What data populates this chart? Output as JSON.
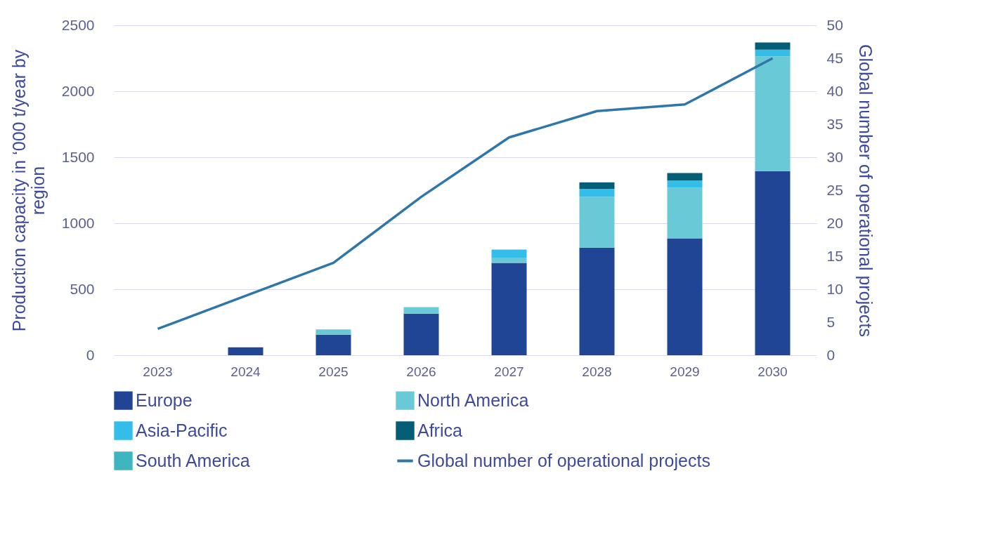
{
  "chart_data": {
    "type": "bar",
    "stacked": true,
    "categories": [
      "2023",
      "2024",
      "2025",
      "2026",
      "2027",
      "2028",
      "2029",
      "2030"
    ],
    "series": [
      {
        "name": "Europe",
        "color": "#1f4594",
        "values": [
          0,
          60,
          155,
          315,
          700,
          815,
          885,
          1395
        ]
      },
      {
        "name": "North America",
        "color": "#6ac9d6",
        "values": [
          0,
          0,
          40,
          50,
          40,
          385,
          385,
          870
        ]
      },
      {
        "name": "Asia-Pacific",
        "color": "#35bde9",
        "values": [
          0,
          0,
          0,
          0,
          60,
          60,
          55,
          50
        ]
      },
      {
        "name": "Africa",
        "color": "#045e76",
        "values": [
          0,
          0,
          0,
          0,
          0,
          50,
          55,
          55
        ]
      },
      {
        "name": "South America",
        "color": "#3fb5c0",
        "values": [
          0,
          0,
          0,
          0,
          0,
          0,
          0,
          0
        ]
      },
      {
        "name": "Global number of operational projects",
        "type": "line",
        "axis": "y2",
        "color": "#2f77a8",
        "values": [
          4,
          9,
          14,
          24,
          33,
          37,
          38,
          45
        ]
      }
    ],
    "ylabel": "Production capacity in ‘000 t/year by region",
    "y2label": "Global number of operational projects",
    "ylim": [
      0,
      2500
    ],
    "yticks": [
      0,
      500,
      1000,
      1500,
      2000,
      2500
    ],
    "y2lim": [
      0,
      50
    ],
    "y2ticks": [
      0,
      5,
      10,
      15,
      20,
      25,
      30,
      35,
      40,
      45,
      50
    ],
    "grid": "y",
    "legend": "bottom"
  }
}
